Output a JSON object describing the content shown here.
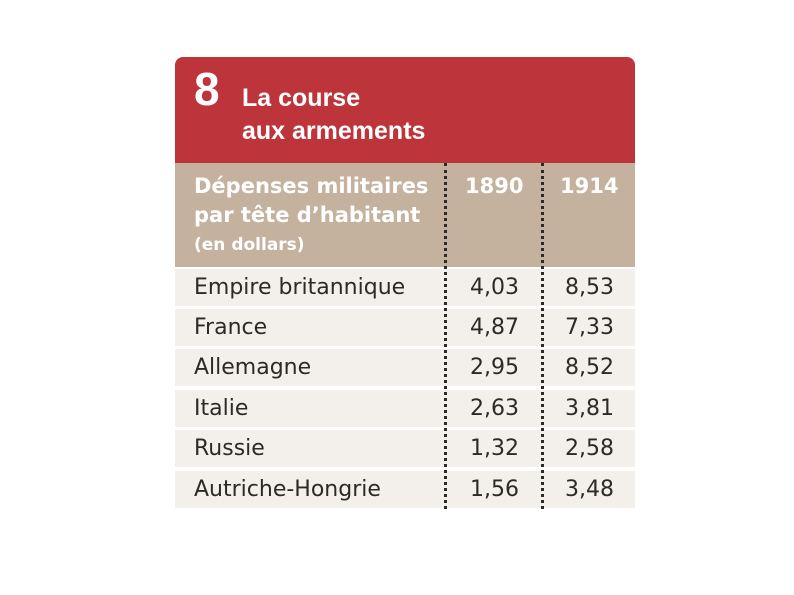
{
  "title": {
    "number": "8",
    "line1": "La course",
    "line2": "aux armements"
  },
  "header": {
    "label_line1": "Dépenses militaires",
    "label_line2": "par tête d’habitant",
    "label_line3": "(en dollars)",
    "years": [
      "1890",
      "1914"
    ]
  },
  "rows": [
    {
      "country": "Empire britannique",
      "v1890": "4,03",
      "v1914": "8,53"
    },
    {
      "country": "France",
      "v1890": "4,87",
      "v1914": "7,33"
    },
    {
      "country": "Allemagne",
      "v1890": "2,95",
      "v1914": "8,52"
    },
    {
      "country": "Italie",
      "v1890": "2,63",
      "v1914": "3,81"
    },
    {
      "country": "Russie",
      "v1890": "1,32",
      "v1914": "2,58"
    },
    {
      "country": "Autriche-Hongrie",
      "v1890": "1,56",
      "v1914": "3,48"
    }
  ],
  "colors": {
    "title_bg": "#bd343b",
    "header_bg": "#c4b29f",
    "row_bg": "#f3efea"
  }
}
